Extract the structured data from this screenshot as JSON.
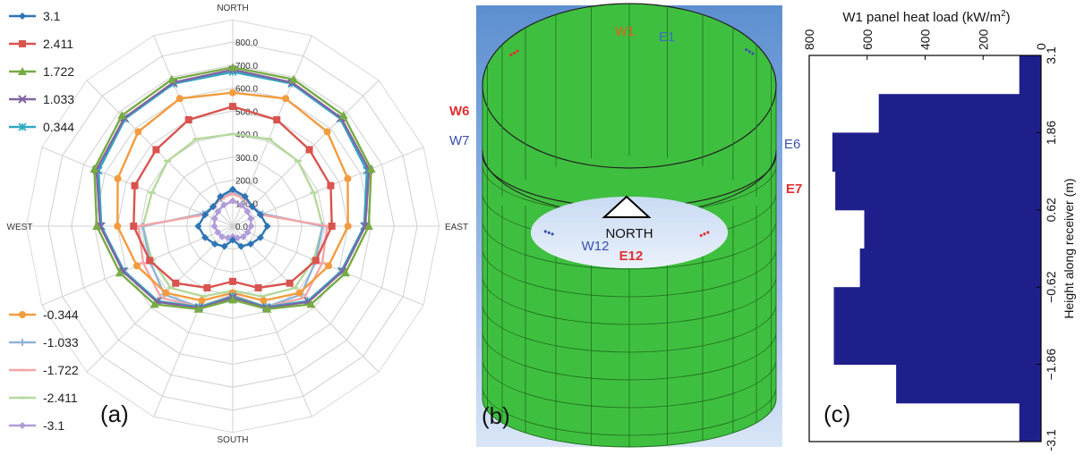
{
  "chart_data": [
    {
      "type": "radar",
      "panel_label": "(a)",
      "directions": [
        "NORTH",
        "EAST",
        "SOUTH",
        "WEST"
      ],
      "radial_ticks": [
        "0.0",
        "100.0",
        "200.0",
        "300.0",
        "400.0",
        "500.0",
        "600.0",
        "700.0",
        "800.0"
      ],
      "rlim": [
        0,
        800
      ],
      "spokes": 16,
      "series": [
        {
          "name": "3.1",
          "color": "#2e75b6",
          "marker": "diamond",
          "values": [
            160,
            140,
            120,
            130,
            150,
            130,
            110,
            95,
            60,
            95,
            110,
            130,
            150,
            130,
            120,
            140
          ]
        },
        {
          "name": "2.411",
          "color": "#d9534f",
          "marker": "square",
          "values": [
            520,
            500,
            470,
            460,
            430,
            390,
            350,
            290,
            240,
            290,
            350,
            390,
            430,
            460,
            470,
            500
          ]
        },
        {
          "name": "1.722",
          "color": "#77ab43",
          "marker": "triangle",
          "values": [
            690,
            690,
            680,
            650,
            590,
            530,
            480,
            390,
            320,
            390,
            480,
            530,
            590,
            650,
            680,
            690
          ]
        },
        {
          "name": "1.033",
          "color": "#8064a2",
          "marker": "x",
          "values": [
            680,
            675,
            665,
            640,
            575,
            515,
            465,
            385,
            310,
            385,
            465,
            515,
            575,
            640,
            665,
            675
          ]
        },
        {
          "name": "0.344",
          "color": "#31a8c4",
          "marker": "asterisk",
          "values": [
            670,
            670,
            660,
            630,
            570,
            510,
            460,
            380,
            305,
            380,
            460,
            510,
            570,
            630,
            660,
            670
          ]
        },
        {
          "name": "-0.344",
          "color": "#f39c3f",
          "marker": "circle",
          "values": [
            580,
            600,
            580,
            540,
            500,
            450,
            410,
            350,
            290,
            350,
            410,
            450,
            500,
            540,
            580,
            600
          ]
        },
        {
          "name": "-1.033",
          "color": "#8fb3d9",
          "marker": "plus",
          "values": [
            150,
            130,
            120,
            140,
            390,
            390,
            420,
            380,
            320,
            380,
            420,
            390,
            390,
            140,
            120,
            130
          ]
        },
        {
          "name": "-1.722",
          "color": "#f4a6a6",
          "marker": "dash",
          "values": [
            140,
            130,
            120,
            130,
            410,
            420,
            440,
            380,
            300,
            380,
            440,
            420,
            410,
            130,
            120,
            130
          ]
        },
        {
          "name": "-2.411",
          "color": "#b5d99c",
          "marker": "dash",
          "values": [
            400,
            410,
            400,
            380,
            390,
            380,
            380,
            330,
            280,
            330,
            380,
            380,
            390,
            380,
            400,
            410
          ]
        },
        {
          "name": "-3.1",
          "color": "#b19cd9",
          "marker": "diamond",
          "values": [
            110,
            100,
            90,
            85,
            80,
            70,
            65,
            55,
            45,
            55,
            65,
            70,
            80,
            85,
            90,
            100
          ]
        }
      ]
    },
    {
      "type": "bar",
      "orientation": "horizontal",
      "panel_label": "(c)",
      "title": "W1 panel heat load (kW/m",
      "title_sup": "2",
      "title_end": ")",
      "ylabel": "Height along receiver (m)",
      "x_ticks": [
        "800",
        "600",
        "400",
        "200",
        "0"
      ],
      "xlim": [
        800,
        0
      ],
      "y_ticks": [
        "3.1",
        "1.86",
        "0.62",
        "−0.62",
        "−1.86",
        "−3.1"
      ],
      "ylim": [
        -3.1,
        3.1
      ],
      "bar_color": "#1f1f8c",
      "bars": [
        {
          "y_top": 3.1,
          "y_bottom": 2.48,
          "value": 75
        },
        {
          "y_top": 2.48,
          "y_bottom": 1.86,
          "value": 560
        },
        {
          "y_top": 1.86,
          "y_bottom": 1.24,
          "value": 720
        },
        {
          "y_top": 1.24,
          "y_bottom": 0.62,
          "value": 710
        },
        {
          "y_top": 0.62,
          "y_bottom": 0.0,
          "value": 610
        },
        {
          "y_top": 0.0,
          "y_bottom": -0.62,
          "value": 625
        },
        {
          "y_top": -0.62,
          "y_bottom": -1.24,
          "value": 715
        },
        {
          "y_top": -1.24,
          "y_bottom": -1.86,
          "value": 715
        },
        {
          "y_top": -1.86,
          "y_bottom": -2.48,
          "value": 500
        },
        {
          "y_top": -2.48,
          "y_bottom": -3.1,
          "value": 75
        }
      ]
    }
  ],
  "diagram": {
    "panel_label": "(b)",
    "north_label": "NORTH",
    "panel_labels": [
      {
        "id": "w1",
        "text": "W1",
        "color": "#e06020"
      },
      {
        "id": "e1",
        "text": "E1",
        "color": "#3a6fc4"
      },
      {
        "id": "w6",
        "text": "W6",
        "color": "#e03030"
      },
      {
        "id": "w7",
        "text": "W7",
        "color": "#3a4fb0"
      },
      {
        "id": "e6",
        "text": "E6",
        "color": "#3a4fb0"
      },
      {
        "id": "e7",
        "text": "E7",
        "color": "#e03030"
      },
      {
        "id": "w12",
        "text": "W12",
        "color": "#3a4fb0"
      },
      {
        "id": "e12",
        "text": "E12",
        "color": "#e03030"
      }
    ],
    "dots": "•••",
    "cylinder_color": "#3fbf3f",
    "sky_color": "#7fa7dc"
  }
}
